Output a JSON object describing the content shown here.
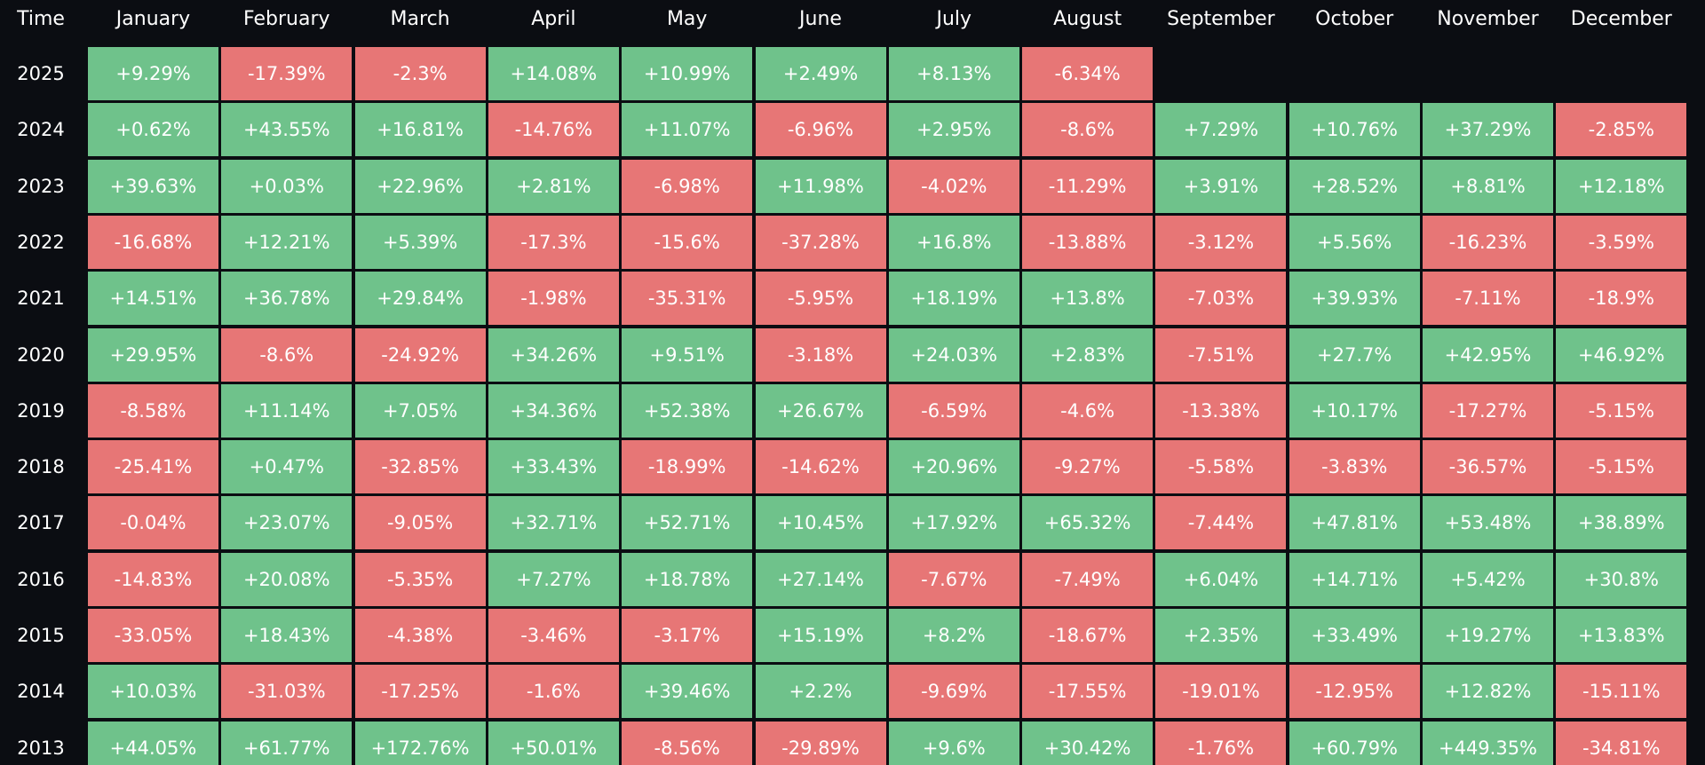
{
  "colors": {
    "background": "#0b0d12",
    "positive": "#6fc28b",
    "negative": "#e77676",
    "text": "#ffffff"
  },
  "chart_data": {
    "type": "heatmap",
    "corner_label": "Time",
    "columns": [
      "January",
      "February",
      "March",
      "April",
      "May",
      "June",
      "July",
      "August",
      "September",
      "October",
      "November",
      "December"
    ],
    "rows": [
      {
        "year": "2025",
        "values": [
          "+9.29%",
          "-17.39%",
          "-2.3%",
          "+14.08%",
          "+10.99%",
          "+2.49%",
          "+8.13%",
          "-6.34%",
          null,
          null,
          null,
          null
        ]
      },
      {
        "year": "2024",
        "values": [
          "+0.62%",
          "+43.55%",
          "+16.81%",
          "-14.76%",
          "+11.07%",
          "-6.96%",
          "+2.95%",
          "-8.6%",
          "+7.29%",
          "+10.76%",
          "+37.29%",
          "-2.85%"
        ]
      },
      {
        "year": "2023",
        "values": [
          "+39.63%",
          "+0.03%",
          "+22.96%",
          "+2.81%",
          "-6.98%",
          "+11.98%",
          "-4.02%",
          "-11.29%",
          "+3.91%",
          "+28.52%",
          "+8.81%",
          "+12.18%"
        ]
      },
      {
        "year": "2022",
        "values": [
          "-16.68%",
          "+12.21%",
          "+5.39%",
          "-17.3%",
          "-15.6%",
          "-37.28%",
          "+16.8%",
          "-13.88%",
          "-3.12%",
          "+5.56%",
          "-16.23%",
          "-3.59%"
        ]
      },
      {
        "year": "2021",
        "values": [
          "+14.51%",
          "+36.78%",
          "+29.84%",
          "-1.98%",
          "-35.31%",
          "-5.95%",
          "+18.19%",
          "+13.8%",
          "-7.03%",
          "+39.93%",
          "-7.11%",
          "-18.9%"
        ]
      },
      {
        "year": "2020",
        "values": [
          "+29.95%",
          "-8.6%",
          "-24.92%",
          "+34.26%",
          "+9.51%",
          "-3.18%",
          "+24.03%",
          "+2.83%",
          "-7.51%",
          "+27.7%",
          "+42.95%",
          "+46.92%"
        ]
      },
      {
        "year": "2019",
        "values": [
          "-8.58%",
          "+11.14%",
          "+7.05%",
          "+34.36%",
          "+52.38%",
          "+26.67%",
          "-6.59%",
          "-4.6%",
          "-13.38%",
          "+10.17%",
          "-17.27%",
          "-5.15%"
        ]
      },
      {
        "year": "2018",
        "values": [
          "-25.41%",
          "+0.47%",
          "-32.85%",
          "+33.43%",
          "-18.99%",
          "-14.62%",
          "+20.96%",
          "-9.27%",
          "-5.58%",
          "-3.83%",
          "-36.57%",
          "-5.15%"
        ]
      },
      {
        "year": "2017",
        "values": [
          "-0.04%",
          "+23.07%",
          "-9.05%",
          "+32.71%",
          "+52.71%",
          "+10.45%",
          "+17.92%",
          "+65.32%",
          "-7.44%",
          "+47.81%",
          "+53.48%",
          "+38.89%"
        ]
      },
      {
        "year": "2016",
        "values": [
          "-14.83%",
          "+20.08%",
          "-5.35%",
          "+7.27%",
          "+18.78%",
          "+27.14%",
          "-7.67%",
          "-7.49%",
          "+6.04%",
          "+14.71%",
          "+5.42%",
          "+30.8%"
        ]
      },
      {
        "year": "2015",
        "values": [
          "-33.05%",
          "+18.43%",
          "-4.38%",
          "-3.46%",
          "-3.17%",
          "+15.19%",
          "+8.2%",
          "-18.67%",
          "+2.35%",
          "+33.49%",
          "+19.27%",
          "+13.83%"
        ]
      },
      {
        "year": "2014",
        "values": [
          "+10.03%",
          "-31.03%",
          "-17.25%",
          "-1.6%",
          "+39.46%",
          "+2.2%",
          "-9.69%",
          "-17.55%",
          "-19.01%",
          "-12.95%",
          "+12.82%",
          "-15.11%"
        ]
      },
      {
        "year": "2013",
        "values": [
          "+44.05%",
          "+61.77%",
          "+172.76%",
          "+50.01%",
          "-8.56%",
          "-29.89%",
          "+9.6%",
          "+30.42%",
          "-1.76%",
          "+60.79%",
          "+449.35%",
          "-34.81%"
        ]
      }
    ]
  }
}
